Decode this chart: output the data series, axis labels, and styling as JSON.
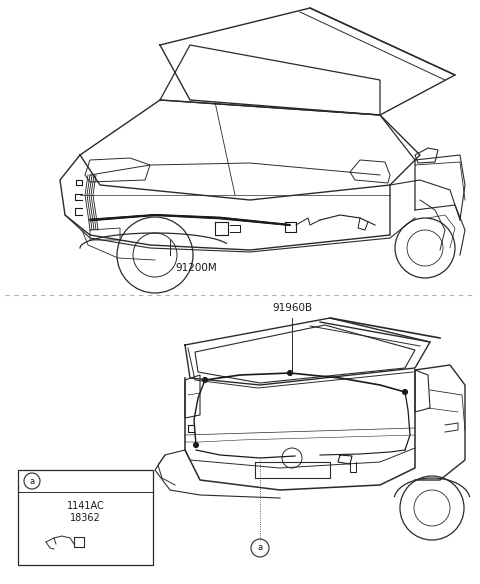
{
  "bg_color": "#ffffff",
  "line_color": "#2a2a2a",
  "wiring_color": "#1a1a1a",
  "divider_color": "#b0b0b0",
  "label_color": "#1a1a1a",
  "top_label": "91200M",
  "bottom_label": "91960B",
  "inset_label1": "1141AC",
  "inset_label2": "18362",
  "figsize": [
    4.8,
    5.84
  ],
  "dpi": 100
}
